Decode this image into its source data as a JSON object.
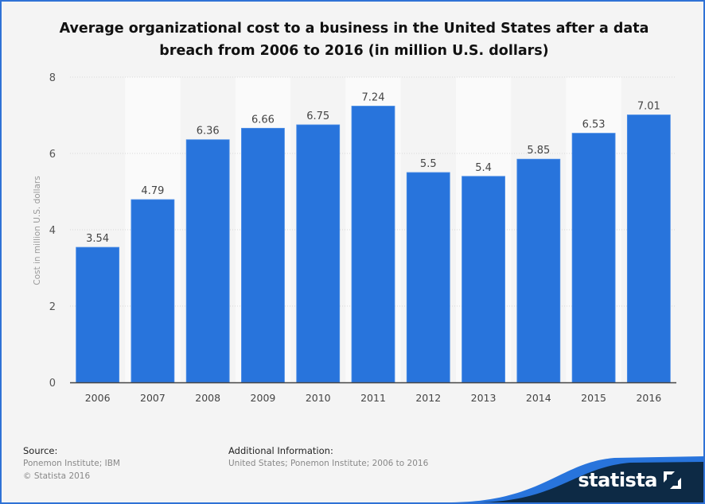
{
  "chart_data": {
    "type": "bar",
    "title": "Average organizational cost to a business in the United States after a data breach from 2006 to 2016 (in million U.S. dollars)",
    "xlabel": "",
    "ylabel": "Cost in million U.S. dollars",
    "ylim": [
      0,
      8
    ],
    "yticks": [
      0,
      2,
      4,
      6,
      8
    ],
    "grid": true,
    "categories": [
      "2006",
      "2007",
      "2008",
      "2009",
      "2010",
      "2011",
      "2012",
      "2013",
      "2014",
      "2015",
      "2016"
    ],
    "values": [
      3.54,
      4.79,
      6.36,
      6.66,
      6.75,
      7.24,
      5.5,
      5.4,
      5.85,
      6.53,
      7.01
    ],
    "bar_color": "#2874dc"
  },
  "footer": {
    "source_label": "Source:",
    "source_lines": [
      "Ponemon Institute; IBM",
      "© Statista 2016"
    ],
    "additional_label": "Additional Information:",
    "additional_text": "United States; Ponemon Institute; 2006 to 2016"
  },
  "brand": {
    "name": "statista",
    "icon": "statista-logo-icon",
    "dark": "#0d2a45",
    "accent": "#2874dc"
  }
}
